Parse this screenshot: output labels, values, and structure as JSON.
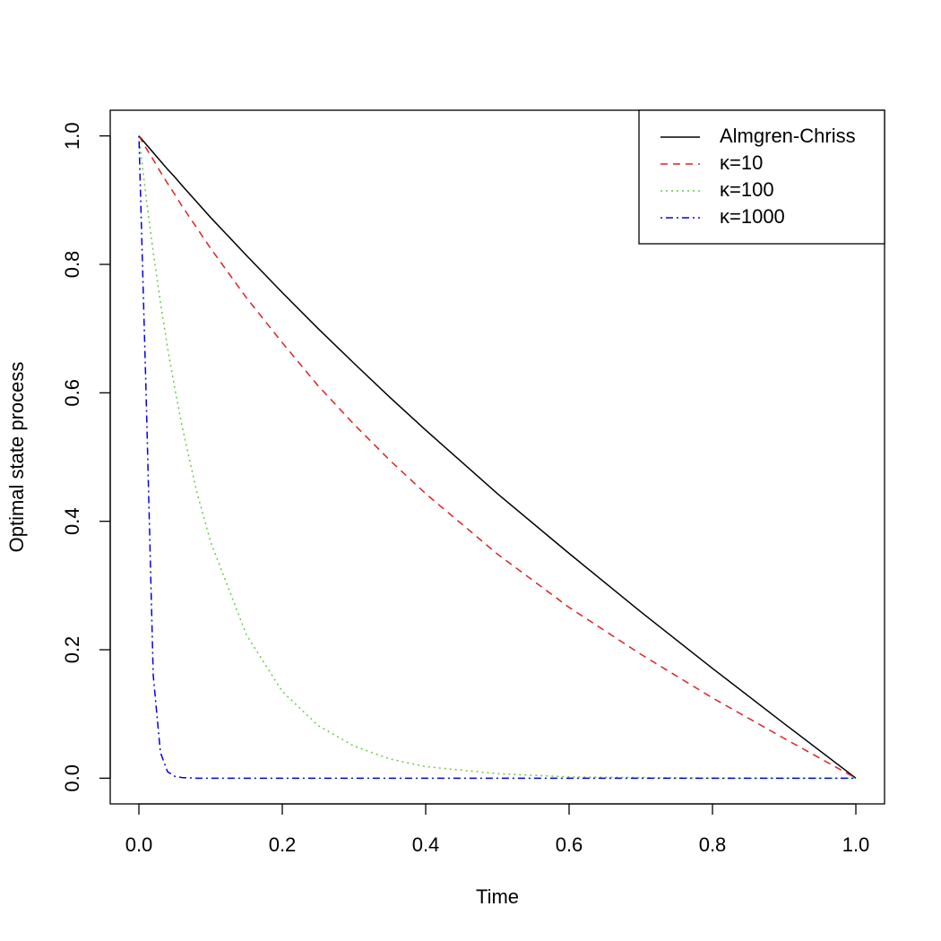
{
  "chart_data": {
    "type": "line",
    "x_label": "Time",
    "y_label": "Optimal state process",
    "x": [
      0,
      0.01,
      0.02,
      0.03,
      0.04,
      0.05,
      0.06,
      0.08,
      0.1,
      0.15,
      0.2,
      0.25,
      0.3,
      0.35,
      0.4,
      0.5,
      0.6,
      0.7,
      0.8,
      0.9,
      1
    ],
    "series": [
      {
        "name": "Almgren-Chriss",
        "color": "#000000",
        "linestyle": "solid",
        "values": [
          1,
          0.987,
          0.974,
          0.961,
          0.948,
          0.936,
          0.923,
          0.898,
          0.873,
          0.814,
          0.756,
          0.7,
          0.646,
          0.593,
          0.542,
          0.443,
          0.35,
          0.259,
          0.171,
          0.085,
          0
        ]
      },
      {
        "name": "κ=10",
        "color": "#dd2222",
        "linestyle": "dashed",
        "values": [
          1,
          0.981,
          0.963,
          0.944,
          0.926,
          0.909,
          0.891,
          0.858,
          0.825,
          0.748,
          0.678,
          0.611,
          0.551,
          0.495,
          0.443,
          0.349,
          0.266,
          0.193,
          0.125,
          0.062,
          0
        ]
      },
      {
        "name": "κ=100",
        "color": "#66cc44",
        "linestyle": "dotted",
        "values": [
          1,
          0.905,
          0.819,
          0.741,
          0.67,
          0.607,
          0.549,
          0.449,
          0.368,
          0.223,
          0.135,
          0.082,
          0.05,
          0.03,
          0.018,
          0.007,
          0.002,
          0.001,
          0,
          0,
          0
        ]
      },
      {
        "name": "κ=1000",
        "color": "#0000ee",
        "linestyle": "dotdash",
        "values": [
          1,
          0.6,
          0.16,
          0.04,
          0.01,
          0.003,
          0.001,
          0,
          0,
          0,
          0,
          0,
          0,
          0,
          0,
          0,
          0,
          0,
          0,
          0,
          0
        ]
      }
    ],
    "xlim": [
      -0.04,
      1.04
    ],
    "ylim": [
      -0.04,
      1.04
    ],
    "xticks": [
      {
        "value": 0,
        "label": "0.0"
      },
      0.2,
      0.4,
      0.6,
      0.8,
      {
        "value": 1,
        "label": "1.0"
      }
    ],
    "yticks": [
      {
        "value": 0,
        "label": "0.0"
      },
      0.2,
      0.4,
      0.6,
      0.8,
      {
        "value": 1,
        "label": "1.0"
      }
    ],
    "legend": "top-right",
    "grid": false
  }
}
